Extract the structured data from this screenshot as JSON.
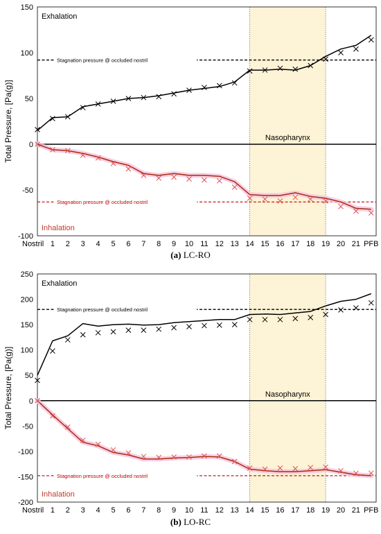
{
  "chart_data": [
    {
      "type": "line",
      "caption_letter": "(a)",
      "caption_text": "LC-RO",
      "ylabel": "Total Pressure, [Pa(g)]",
      "xlabel": "",
      "ylim": [
        -100,
        150
      ],
      "yticks": [
        -100,
        -50,
        0,
        50,
        100,
        150
      ],
      "categories": [
        "Nostril",
        "1",
        "2",
        "3",
        "4",
        "5",
        "6",
        "7",
        "8",
        "9",
        "10",
        "11",
        "12",
        "13",
        "14",
        "15",
        "16",
        "17",
        "18",
        "19",
        "20",
        "21",
        "PFB"
      ],
      "region": {
        "label": "Nasopharynx",
        "from": "14",
        "to": "19",
        "color": "#fdf3d6"
      },
      "text_labels": {
        "exhalation": "Exhalation",
        "inhalation": "Inhalation"
      },
      "reference_lines": [
        {
          "label": "Stagnation pressure @ occluded nostril",
          "value": 92,
          "color": "#000000"
        },
        {
          "label": "Stagnation pressure @ occluded nostril",
          "value": -63,
          "color": "#c00000"
        }
      ],
      "series": [
        {
          "role": "exhalation-line",
          "color": "#000000",
          "values": [
            15,
            29,
            30,
            41,
            44,
            47,
            50,
            51,
            53,
            56,
            59,
            61,
            63,
            68,
            81,
            81,
            82,
            81,
            86,
            96,
            104,
            108,
            119
          ]
        },
        {
          "role": "exhalation-markers",
          "color": "#000000",
          "values": [
            16,
            28,
            30,
            40,
            44,
            47,
            50,
            51,
            52,
            55,
            59,
            62,
            64,
            67,
            80,
            81,
            83,
            82,
            86,
            93,
            100,
            104,
            114
          ]
        },
        {
          "role": "inhalation-line",
          "color": "#a52a10",
          "values": [
            0,
            -6,
            -7,
            -10,
            -14,
            -19,
            -23,
            -32,
            -34,
            -32,
            -34,
            -34,
            -35,
            -41,
            -55,
            -56,
            -56,
            -53,
            -57,
            -59,
            -63,
            -70,
            -71
          ]
        },
        {
          "role": "inhalation-markers",
          "color": "#e05050",
          "values": [
            0,
            -6,
            -7,
            -12,
            -15,
            -21,
            -27,
            -34,
            -37,
            -36,
            -38,
            -39,
            -40,
            -47,
            -59,
            -60,
            -62,
            -58,
            -60,
            -62,
            -68,
            -73,
            -75
          ]
        }
      ]
    },
    {
      "type": "line",
      "caption_letter": "(b)",
      "caption_text": "LO-RC",
      "ylabel": "Total Pressure, [Pa(g)]",
      "xlabel": "",
      "ylim": [
        -200,
        250
      ],
      "yticks": [
        -200,
        -150,
        -100,
        -50,
        0,
        50,
        100,
        150,
        200,
        250
      ],
      "categories": [
        "Nostril",
        "1",
        "2",
        "3",
        "4",
        "5",
        "6",
        "7",
        "8",
        "9",
        "10",
        "11",
        "12",
        "13",
        "14",
        "15",
        "16",
        "17",
        "18",
        "19",
        "20",
        "21",
        "PFB"
      ],
      "region": {
        "label": "Nasopharynx",
        "from": "14",
        "to": "19",
        "color": "#fdf3d6"
      },
      "text_labels": {
        "exhalation": "Exhalation",
        "inhalation": "Inhalation"
      },
      "reference_lines": [
        {
          "label": "Stagnation pressure @ occluded nostril",
          "value": 180,
          "color": "#000000"
        },
        {
          "label": "Stagnation pressure @ occluded nostril",
          "value": -148,
          "color": "#c00000"
        }
      ],
      "series": [
        {
          "role": "exhalation-line",
          "color": "#000000",
          "values": [
            50,
            118,
            128,
            152,
            147,
            150,
            151,
            149,
            150,
            154,
            156,
            158,
            160,
            160,
            170,
            171,
            170,
            173,
            176,
            187,
            196,
            200,
            211
          ]
        },
        {
          "role": "exhalation-markers",
          "color": "#000000",
          "values": [
            40,
            98,
            120,
            130,
            134,
            136,
            139,
            139,
            141,
            144,
            146,
            148,
            149,
            150,
            160,
            160,
            160,
            162,
            164,
            170,
            179,
            183,
            193
          ]
        },
        {
          "role": "inhalation-line",
          "color": "#a52a10",
          "values": [
            0,
            -28,
            -55,
            -82,
            -89,
            -102,
            -107,
            -115,
            -115,
            -113,
            -112,
            -110,
            -111,
            -120,
            -135,
            -138,
            -140,
            -140,
            -138,
            -136,
            -141,
            -146,
            -148
          ]
        },
        {
          "role": "inhalation-markers",
          "color": "#e05050",
          "values": [
            0,
            -30,
            -52,
            -78,
            -86,
            -97,
            -103,
            -110,
            -112,
            -111,
            -111,
            -109,
            -109,
            -120,
            -133,
            -135,
            -133,
            -134,
            -132,
            -131,
            -138,
            -143,
            -143
          ]
        }
      ]
    }
  ]
}
